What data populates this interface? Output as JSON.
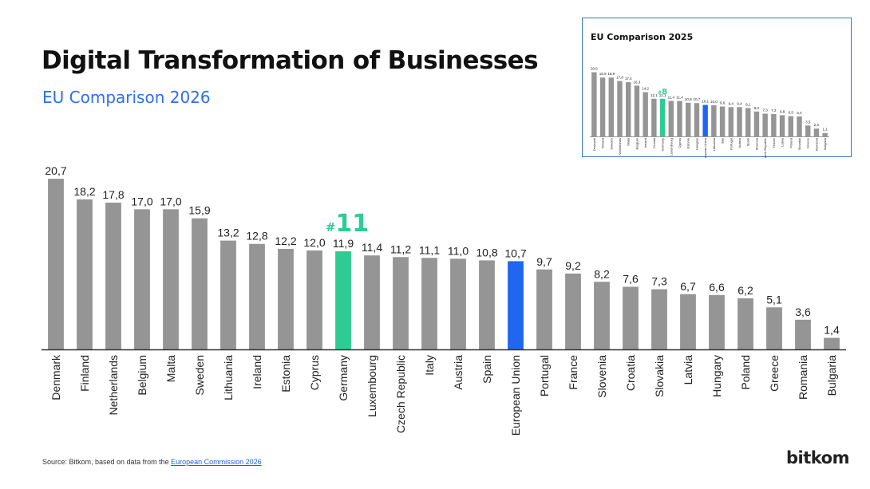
{
  "title": "Digital Transformation of Businesses",
  "subtitle": "EU Comparison 2026",
  "colors": {
    "bar": "#959595",
    "highlight": "#2ecc94",
    "eu": "#1f66f0",
    "subtitle": "#2d6ff0",
    "axis": "#333333"
  },
  "chart_data": [
    {
      "type": "bar",
      "title": "Digital Transformation of Businesses",
      "subtitle": "EU Comparison 2026",
      "categories": [
        "Denmark",
        "Finland",
        "Netherlands",
        "Belgium",
        "Malta",
        "Sweden",
        "Lithuania",
        "Ireland",
        "Estonia",
        "Cyprus",
        "Germany",
        "Luxembourg",
        "Czech Republic",
        "Italy",
        "Austria",
        "Spain",
        "European Union",
        "Portugal",
        "France",
        "Slovenia",
        "Croatia",
        "Slovakia",
        "Latvia",
        "Hungary",
        "Poland",
        "Greece",
        "Romania",
        "Bulgaria"
      ],
      "values": [
        20.7,
        18.2,
        17.8,
        17.0,
        17.0,
        15.9,
        13.2,
        12.8,
        12.2,
        12.0,
        11.9,
        11.4,
        11.2,
        11.1,
        11.0,
        10.8,
        10.7,
        9.7,
        9.2,
        8.2,
        7.6,
        7.3,
        6.7,
        6.6,
        6.2,
        5.1,
        3.6,
        1.4
      ],
      "value_labels": [
        "20,7",
        "18,2",
        "17,8",
        "17,0",
        "17,0",
        "15,9",
        "13,2",
        "12,8",
        "12,2",
        "12,0",
        "11,9",
        "11,4",
        "11,2",
        "11,1",
        "11,0",
        "10,8",
        "10,7",
        "9,7",
        "9,2",
        "8,2",
        "7,6",
        "7,3",
        "6,7",
        "6,6",
        "6,2",
        "5,1",
        "3,6",
        "1,4"
      ],
      "highlight": {
        "category": "Germany",
        "rank_label": "#11"
      },
      "eu_category": "European Union",
      "ylim": [
        0,
        21
      ],
      "grid": false
    },
    {
      "type": "bar",
      "title": "EU Comparison 2025",
      "categories": [
        "Denmark",
        "Finland",
        "Sweden",
        "Netherlands",
        "Malta",
        "Belgium",
        "Ireland",
        "Croatia",
        "Germany",
        "Luxembourg",
        "Cyprus",
        "Estonia",
        "Hungary",
        "European Union",
        "Lithuania",
        "Italy",
        "Portugal",
        "Austria",
        "Spain",
        "Slovenia",
        "Czech Republic",
        "France",
        "Latvia",
        "Poland",
        "Slovakia",
        "Greece",
        "Romania",
        "Bulgaria"
      ],
      "values": [
        20.6,
        18.9,
        18.9,
        17.8,
        17.4,
        16.3,
        14.2,
        12.1,
        12.1,
        11.4,
        11.4,
        10.8,
        10.7,
        10.1,
        10.0,
        9.6,
        9.4,
        9.4,
        9.1,
        8.0,
        7.3,
        7.2,
        6.8,
        6.5,
        6.4,
        3.5,
        2.5,
        1.1
      ],
      "value_labels": [
        "20,6",
        "18,9",
        "18,9",
        "17,8",
        "17,4",
        "16,3",
        "14,2",
        "12,1",
        "12,1",
        "11,4",
        "11,4",
        "10,8",
        "10,7",
        "10,1",
        "10,0",
        "9,6",
        "9,4",
        "9,4",
        "9,1",
        "8,0",
        "7,3",
        "7,2",
        "6,8",
        "6,5",
        "6,4",
        "3,5",
        "2,5",
        "1,1"
      ],
      "highlight": {
        "category": "Germany",
        "rank_label": "#8"
      },
      "eu_category": "European Union",
      "ylim": [
        0,
        21
      ],
      "grid": false
    }
  ],
  "source": {
    "prefix": "Source: Bitkom, based on data from the ",
    "link_text": "European Commission 2026"
  },
  "logo": "bitkom"
}
